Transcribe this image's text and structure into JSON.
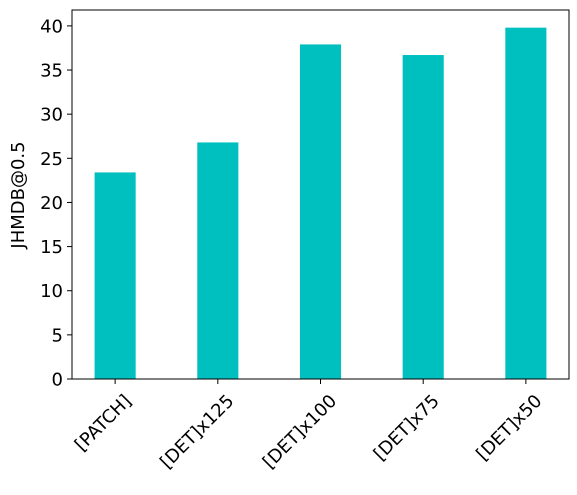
{
  "chart_data": {
    "type": "bar",
    "ylabel": "JHMDB@0.5",
    "categories": [
      "[PATCH]",
      "[DET]x125",
      "[DET]x100",
      "[DET]x75",
      "[DET]x50"
    ],
    "values": [
      23.4,
      26.8,
      37.9,
      36.7,
      39.8
    ],
    "color": "#00bfbf",
    "ylim": [
      0,
      41.8
    ],
    "yticks": [
      0,
      5,
      10,
      15,
      20,
      25,
      30,
      35,
      40
    ],
    "grid": false
  }
}
